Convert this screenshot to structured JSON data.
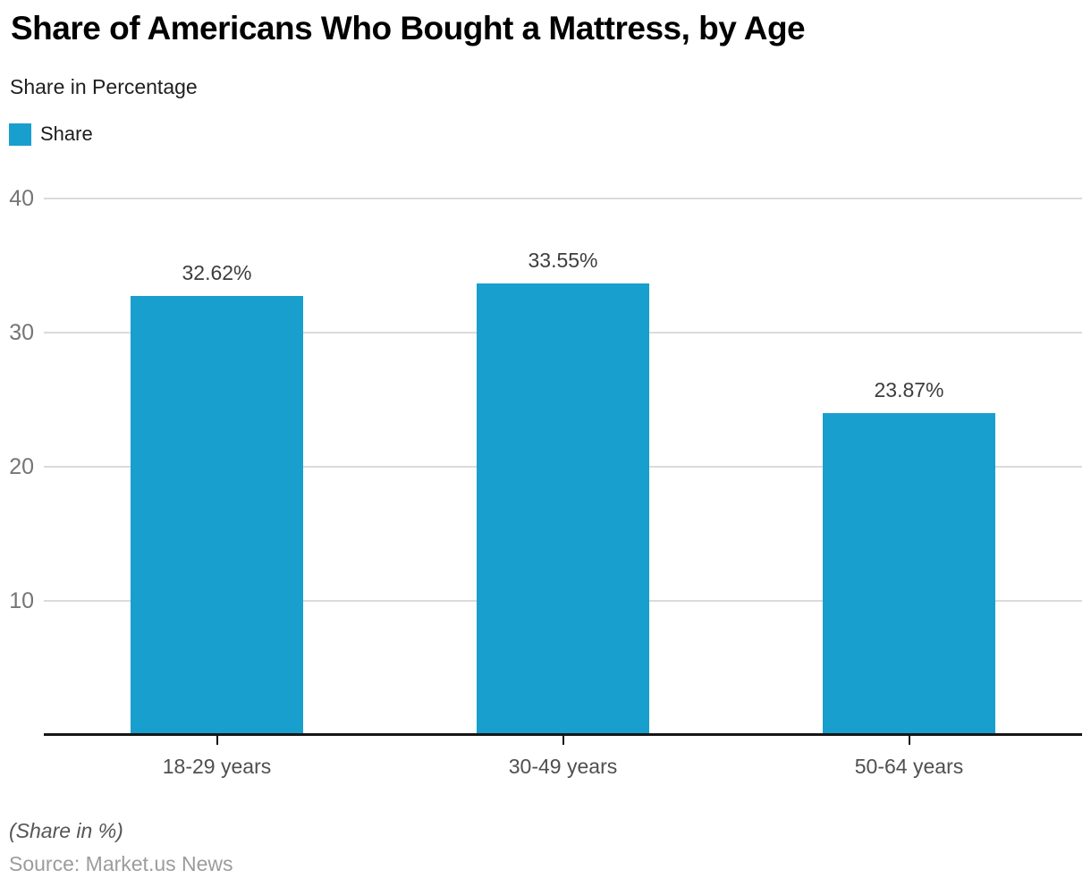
{
  "header": {
    "title": "Share of Americans Who Bought a Mattress, by Age",
    "subtitle": "Share in Percentage"
  },
  "legend": {
    "label": "Share"
  },
  "chart_data": {
    "type": "bar",
    "title": "Share of Americans Who Bought a Mattress, by Age",
    "subtitle": "Share in Percentage",
    "categories": [
      "18-29 years",
      "30-49 years",
      "50-64 years"
    ],
    "series": [
      {
        "name": "Share",
        "values": [
          32.62,
          33.55,
          23.87
        ]
      }
    ],
    "value_labels": [
      "32.62%",
      "33.55%",
      "23.87%"
    ],
    "xlabel": "",
    "ylabel": "",
    "ylim": [
      0,
      40
    ],
    "yticks": [
      10,
      20,
      30,
      40
    ],
    "grid": "horizontal",
    "legend_position": "top-left"
  },
  "footer": {
    "note": "(Share in %)",
    "source": "Source: Market.us News"
  },
  "colors": {
    "bar": "#199FCD",
    "grid": "#DBDBDB",
    "axis": "#161616",
    "ytick_label": "#757575",
    "xtick_label": "#4F4F4F",
    "value_label": "#3D3D3D",
    "note": "#555555",
    "source": "#9C9C9C",
    "title": "#000000",
    "subtitle": "#1F1F1F"
  }
}
